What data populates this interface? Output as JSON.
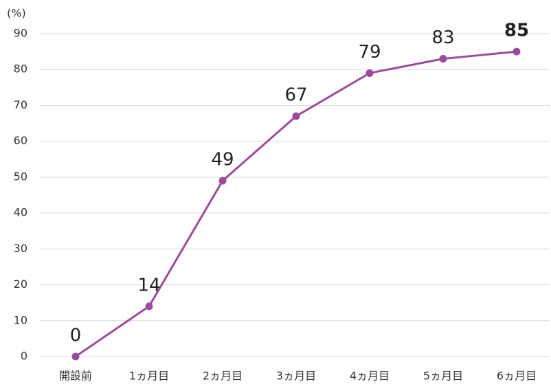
{
  "chart_data": {
    "type": "line",
    "y_label": "(%)",
    "categories": [
      "開設前",
      "1ヵ月目",
      "2ヵ月目",
      "3ヵ月目",
      "4ヵ月目",
      "5ヵ月目",
      "6ヵ月目"
    ],
    "values": [
      0,
      14,
      49,
      67,
      79,
      83,
      85
    ],
    "color": "#9b4b9b",
    "ylim": [
      0,
      90
    ],
    "yticks": [
      0,
      10,
      20,
      30,
      40,
      50,
      60,
      70,
      80,
      90
    ],
    "grid": true
  }
}
